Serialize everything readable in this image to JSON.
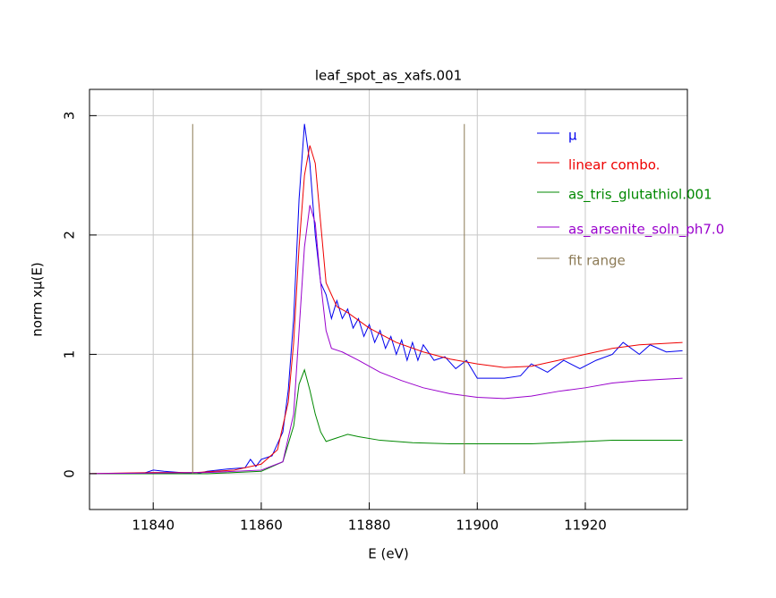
{
  "chart_data": {
    "type": "line",
    "title": "leaf_spot_as_xafs.001",
    "x_label": "E (eV)",
    "y_label": "norm xμ(E)",
    "xlim": [
      11828.2,
      11938.9
    ],
    "ylim": [
      -0.3,
      3.22
    ],
    "xticks": [
      11840,
      11860,
      11880,
      11900,
      11920
    ],
    "yticks": [
      0,
      1,
      2,
      3
    ],
    "grid": true,
    "legend": "upper right",
    "series": [
      {
        "name": "μ",
        "color": "#0000ee",
        "x": [
          11828,
          11838,
          11840,
          11842,
          11845,
          11848,
          11850,
          11854,
          11857,
          11858,
          11859,
          11860,
          11862,
          11863,
          11864,
          11865,
          11866,
          11867,
          11868,
          11869,
          11870,
          11871,
          11872,
          11873,
          11874,
          11875,
          11876,
          11877,
          11878,
          11879,
          11880,
          11881,
          11882,
          11883,
          11884,
          11885,
          11886,
          11887,
          11888,
          11889,
          11890,
          11892,
          11894,
          11896,
          11898,
          11900,
          11905,
          11908,
          11910,
          11913,
          11916,
          11919,
          11922,
          11925,
          11927,
          11930,
          11932,
          11935,
          11938
        ],
        "values": [
          0,
          0,
          0.03,
          0.02,
          0.01,
          0,
          0.02,
          0.04,
          0.05,
          0.12,
          0.06,
          0.12,
          0.15,
          0.25,
          0.35,
          0.7,
          1.3,
          2.3,
          2.93,
          2.6,
          2.0,
          1.6,
          1.5,
          1.3,
          1.45,
          1.3,
          1.38,
          1.22,
          1.3,
          1.15,
          1.25,
          1.1,
          1.2,
          1.05,
          1.15,
          1.0,
          1.12,
          0.95,
          1.1,
          0.95,
          1.08,
          0.95,
          0.98,
          0.88,
          0.95,
          0.8,
          0.8,
          0.82,
          0.92,
          0.85,
          0.95,
          0.88,
          0.95,
          1.0,
          1.1,
          1.0,
          1.08,
          1.02,
          1.03
        ]
      },
      {
        "name": "linear combo.",
        "color": "#ee0000",
        "x": [
          11828,
          11840,
          11848,
          11855,
          11860,
          11863,
          11865,
          11866,
          11867,
          11868,
          11869,
          11870,
          11871,
          11872,
          11874,
          11876,
          11880,
          11885,
          11890,
          11895,
          11900,
          11905,
          11910,
          11915,
          11920,
          11925,
          11930,
          11938
        ],
        "values": [
          0,
          0.01,
          0.01,
          0.03,
          0.08,
          0.2,
          0.6,
          1.1,
          1.9,
          2.5,
          2.75,
          2.6,
          2.1,
          1.6,
          1.4,
          1.35,
          1.22,
          1.1,
          1.02,
          0.96,
          0.92,
          0.89,
          0.9,
          0.95,
          1.0,
          1.05,
          1.08,
          1.1
        ]
      },
      {
        "name": "as_tris_glutathiol.001",
        "color": "#008800",
        "x": [
          11828,
          11850,
          11860,
          11864,
          11866,
          11867,
          11868,
          11869,
          11870,
          11871,
          11872,
          11874,
          11876,
          11878,
          11882,
          11888,
          11895,
          11900,
          11905,
          11910,
          11915,
          11920,
          11925,
          11938
        ],
        "values": [
          0,
          0,
          0.02,
          0.1,
          0.4,
          0.75,
          0.87,
          0.7,
          0.5,
          0.35,
          0.27,
          0.3,
          0.33,
          0.31,
          0.28,
          0.26,
          0.25,
          0.25,
          0.25,
          0.25,
          0.26,
          0.27,
          0.28,
          0.28
        ]
      },
      {
        "name": "as_arsenite_soln_ph7.0",
        "color": "#9900cc",
        "x": [
          11828,
          11850,
          11860,
          11864,
          11866,
          11867,
          11868,
          11869,
          11870,
          11871,
          11872,
          11873,
          11875,
          11878,
          11882,
          11886,
          11890,
          11895,
          11900,
          11905,
          11910,
          11915,
          11920,
          11925,
          11930,
          11938
        ],
        "values": [
          0,
          0.01,
          0.03,
          0.1,
          0.5,
          1.2,
          1.9,
          2.25,
          2.1,
          1.6,
          1.2,
          1.05,
          1.02,
          0.95,
          0.85,
          0.78,
          0.72,
          0.67,
          0.64,
          0.63,
          0.65,
          0.69,
          0.72,
          0.76,
          0.78,
          0.8
        ]
      },
      {
        "name": "fit range",
        "color": "#8c7a55",
        "x": [
          11847.3,
          11847.3,
          null,
          11897.6,
          11897.6
        ],
        "values": [
          0,
          2.93,
          null,
          0,
          2.93
        ]
      }
    ]
  }
}
